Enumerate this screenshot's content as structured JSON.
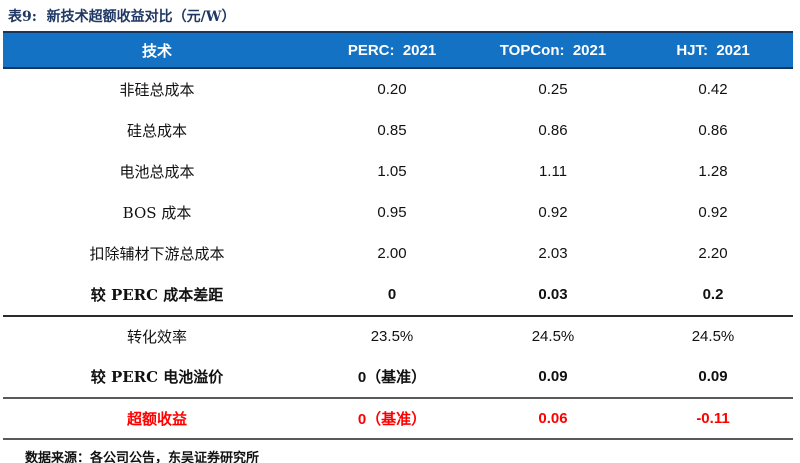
{
  "title": "表9:  新技术超额收益对比（元/W）",
  "table": {
    "header": [
      "技术",
      "PERC:  2021",
      "TOPCon:  2021",
      "HJT:  2021"
    ],
    "rows": [
      {
        "label": "非硅总成本",
        "values": [
          "0.20",
          "0.25",
          "0.42"
        ],
        "style": "normal",
        "separator": "none"
      },
      {
        "label": "硅总成本",
        "values": [
          "0.85",
          "0.86",
          "0.86"
        ],
        "style": "normal",
        "separator": "none"
      },
      {
        "label": "电池总成本",
        "values": [
          "1.05",
          "1.11",
          "1.28"
        ],
        "style": "normal",
        "separator": "none"
      },
      {
        "label": "BOS 成本",
        "values": [
          "0.95",
          "0.92",
          "0.92"
        ],
        "style": "normal",
        "separator": "none"
      },
      {
        "label": "扣除辅材下游总成本",
        "values": [
          "2.00",
          "2.03",
          "2.20"
        ],
        "style": "normal",
        "separator": "none"
      },
      {
        "label": "较 PERC 成本差距",
        "values": [
          "0",
          "0.03",
          "0.2"
        ],
        "style": "bold",
        "separator": "none"
      },
      {
        "label": "转化效率",
        "values": [
          "23.5%",
          "24.5%",
          "24.5%"
        ],
        "style": "normal",
        "separator": "thin-top"
      },
      {
        "label": "较 PERC 电池溢价",
        "values": [
          "0（基准）",
          "0.09",
          "0.09"
        ],
        "style": "bold",
        "separator": "none"
      },
      {
        "label": "超额收益",
        "values": [
          "0（基准）",
          "0.06",
          "-0.11"
        ],
        "style": "bold-red",
        "separator": "thick-top"
      }
    ]
  },
  "footer": "数据来源：各公司公告，东吴证券研究所",
  "colors": {
    "header_bg": "#1472C4",
    "header_border": "#17365D",
    "title_text": "#1F3864",
    "highlight_red": "#FF0000",
    "rule_dark": "#2b2b2b",
    "rule_gray": "#595959"
  }
}
